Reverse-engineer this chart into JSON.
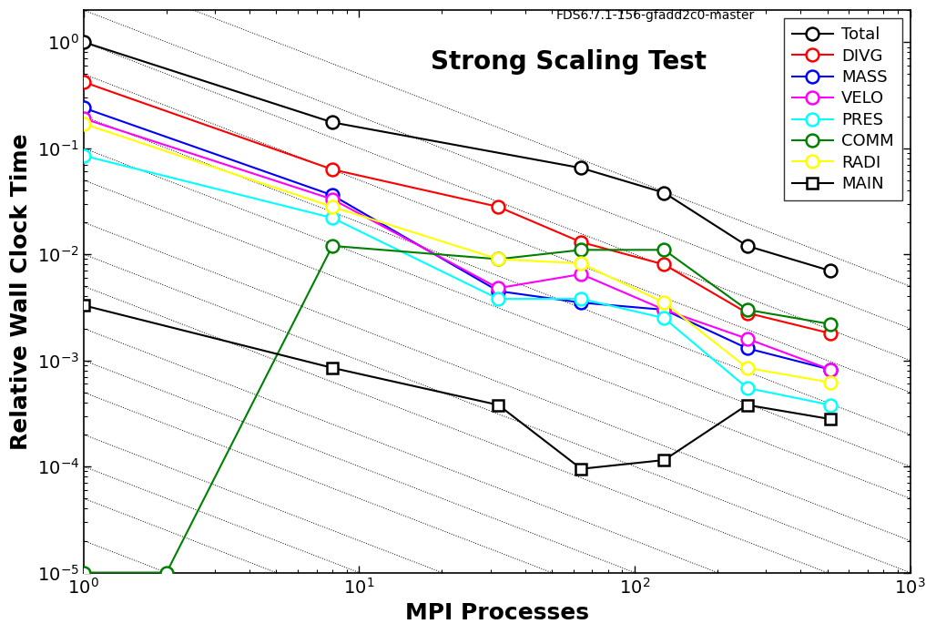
{
  "title": "Strong Scaling Test",
  "version_text": "FDS6.7.1-156-gfadd2c0-master",
  "xlabel": "MPI Processes",
  "ylabel": "Relative Wall Clock Time",
  "xlim": [
    1,
    1000
  ],
  "ylim": [
    1e-05,
    2
  ],
  "series": {
    "Total": {
      "color": "black",
      "marker": "o",
      "markersize": 10,
      "linewidth": 1.5,
      "x": [
        1,
        8,
        64,
        128,
        256,
        512
      ],
      "y": [
        1.0,
        0.175,
        0.065,
        0.038,
        0.012,
        0.007
      ]
    },
    "DIVG": {
      "color": "red",
      "marker": "o",
      "markersize": 10,
      "linewidth": 1.5,
      "x": [
        1,
        8,
        32,
        64,
        128,
        256,
        512
      ],
      "y": [
        0.42,
        0.063,
        0.028,
        0.013,
        0.008,
        0.0028,
        0.0018
      ]
    },
    "MASS": {
      "color": "blue",
      "marker": "o",
      "markersize": 10,
      "linewidth": 1.5,
      "x": [
        1,
        8,
        32,
        64,
        128,
        256,
        512
      ],
      "y": [
        0.24,
        0.036,
        0.0045,
        0.0035,
        0.003,
        0.0013,
        0.00082
      ]
    },
    "VELO": {
      "color": "magenta",
      "marker": "o",
      "markersize": 10,
      "linewidth": 1.5,
      "x": [
        1,
        8,
        32,
        64,
        128,
        256,
        512
      ],
      "y": [
        0.19,
        0.033,
        0.0048,
        0.0065,
        0.003,
        0.0016,
        0.00082
      ]
    },
    "PRES": {
      "color": "cyan",
      "marker": "o",
      "markersize": 10,
      "linewidth": 1.5,
      "x": [
        1,
        8,
        32,
        64,
        128,
        256,
        512
      ],
      "y": [
        0.085,
        0.022,
        0.0038,
        0.0038,
        0.0025,
        0.00055,
        0.00038
      ]
    },
    "COMM": {
      "color": "green",
      "marker": "o",
      "markersize": 10,
      "linewidth": 1.5,
      "x": [
        1,
        2,
        8,
        32,
        64,
        128,
        256,
        512
      ],
      "y": [
        1e-05,
        1e-05,
        0.012,
        0.009,
        0.011,
        0.011,
        0.003,
        0.0022
      ]
    },
    "RADI": {
      "color": "yellow",
      "marker": "o",
      "markersize": 10,
      "linewidth": 1.5,
      "x": [
        1,
        8,
        32,
        64,
        128,
        256,
        512
      ],
      "y": [
        0.17,
        0.028,
        0.009,
        0.0082,
        0.0035,
        0.00085,
        0.00062
      ]
    },
    "MAIN": {
      "color": "black",
      "marker": "s",
      "markersize": 8,
      "linewidth": 1.5,
      "x": [
        1,
        8,
        32,
        64,
        128,
        256,
        512
      ],
      "y": [
        0.0033,
        0.00085,
        0.00038,
        9.5e-05,
        0.000115,
        0.00038,
        0.00028
      ]
    }
  },
  "ref_offsets": [
    5.0,
    2.0,
    1.0,
    0.5,
    0.2,
    0.1,
    0.05,
    0.02,
    0.01,
    0.005,
    0.002,
    0.001,
    0.0005,
    0.0002,
    0.0001,
    5e-05,
    2e-05,
    1e-05
  ]
}
